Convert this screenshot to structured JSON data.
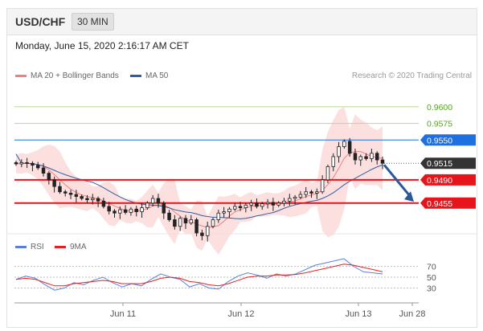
{
  "header": {
    "pair": "USD/CHF",
    "timeframe": "30 MIN",
    "datetime": "Monday, June 15, 2020 2:16:17 AM CET"
  },
  "legend": {
    "ma20_label": "MA 20 + Bollinger Bands",
    "ma50_label": "MA 50",
    "credit": "Research © 2020 Trading Central"
  },
  "rsi_legend": {
    "rsi_label": "RSI",
    "ma_label": "9MA"
  },
  "colors": {
    "ma20": "#f08080",
    "ma50": "#2f5f9f",
    "band_fill": "#fbd6d6",
    "resistance_green": "#5aa02c",
    "level_red": "#e8141b",
    "level_blue": "#1e6fe0",
    "current": "#333333",
    "arrow": "#2a5a96",
    "rsi": "#5b7fd9",
    "rsi_ma": "#e82020"
  },
  "chart_data": {
    "type": "candlestick",
    "title": "USD/CHF",
    "timeframe": "30 MIN",
    "y_range": [
      0.941,
      0.9635
    ],
    "x_ticks": [
      "Jun 11",
      "Jun 12",
      "Jun 13",
      "Jun 28"
    ],
    "levels": [
      {
        "value": "0.9600",
        "type": "resistance-green"
      },
      {
        "value": "0.9575",
        "type": "resistance-green"
      },
      {
        "value": "0.9550",
        "type": "blue"
      },
      {
        "value": "0.9515",
        "type": "current"
      },
      {
        "value": "0.9490",
        "type": "red"
      },
      {
        "value": "0.9455",
        "type": "red"
      }
    ],
    "close_path": [
      0.9514,
      0.9516,
      0.9515,
      0.9512,
      0.9508,
      0.95,
      0.949,
      0.948,
      0.9472,
      0.947,
      0.9468,
      0.9465,
      0.9462,
      0.946,
      0.9462,
      0.9458,
      0.945,
      0.9443,
      0.944,
      0.9445,
      0.9441,
      0.9446,
      0.9442,
      0.9448,
      0.9455,
      0.9462,
      0.9455,
      0.944,
      0.943,
      0.942,
      0.9432,
      0.9425,
      0.943,
      0.941,
      0.9406,
      0.942,
      0.943,
      0.944,
      0.9442,
      0.9446,
      0.945,
      0.9448,
      0.9452,
      0.9455,
      0.945,
      0.9454,
      0.9456,
      0.9452,
      0.9455,
      0.9458,
      0.9462,
      0.9464,
      0.9468,
      0.9472,
      0.947,
      0.9472,
      0.949,
      0.951,
      0.9525,
      0.954,
      0.9548,
      0.953,
      0.952,
      0.9525,
      0.9522,
      0.953,
      0.952,
      0.9515
    ],
    "rsi": {
      "levels": [
        "70",
        "50",
        "30"
      ],
      "rsi_path": [
        46,
        52,
        48,
        36,
        26,
        30,
        40,
        36,
        44,
        50,
        40,
        32,
        38,
        34,
        46,
        56,
        50,
        46,
        32,
        38,
        30,
        28,
        42,
        52,
        58,
        54,
        48,
        56,
        52,
        56,
        64,
        72,
        76,
        80,
        84,
        70,
        60,
        58,
        56
      ],
      "ma_path": [
        46,
        48,
        46,
        40,
        34,
        34,
        38,
        40,
        42,
        44,
        42,
        38,
        38,
        38,
        42,
        48,
        50,
        48,
        42,
        40,
        36,
        34,
        38,
        44,
        50,
        52,
        52,
        54,
        54,
        55,
        58,
        62,
        66,
        70,
        74,
        72,
        68,
        64,
        60
      ]
    }
  }
}
